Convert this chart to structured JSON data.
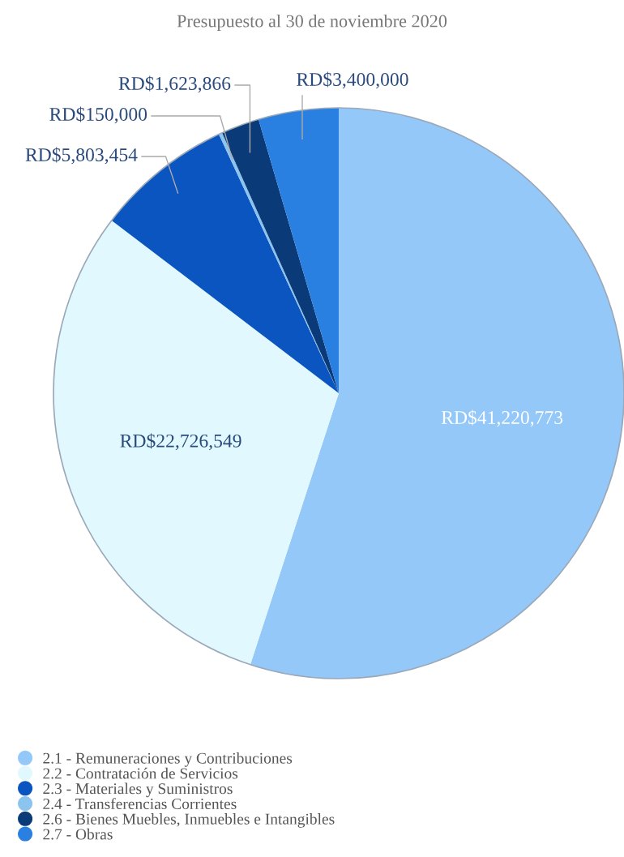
{
  "chart_data": {
    "type": "pie",
    "title": "Presupuesto al 30 de noviembre 2020",
    "categories": [
      "2.1 - Remuneraciones y Contribuciones",
      "2.2 - Contratación de Servicios",
      "2.3 - Materiales y Suministros",
      "2.4 - Transferencias Corrientes",
      "2.6 - Bienes Muebles, Inmuebles e Intangibles",
      "2.7 - Obras"
    ],
    "values": [
      41220773,
      22726549,
      5803454,
      150000,
      1623866,
      3400000
    ],
    "value_labels": [
      "RD$41,220,773",
      "RD$22,726,549",
      "RD$5,803,454",
      "RD$150,000",
      "RD$1,623,866",
      "RD$3,400,000"
    ],
    "colors": [
      "#94c8f8",
      "#e0f8fe",
      "#0a55c0",
      "#8cc4f0",
      "#0a3a78",
      "#2a80e0"
    ],
    "legend": "bottom left"
  }
}
